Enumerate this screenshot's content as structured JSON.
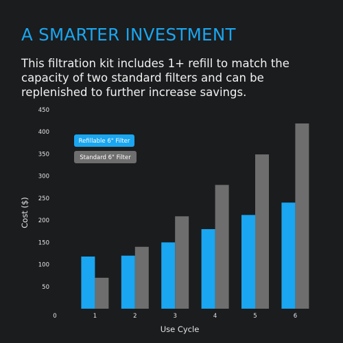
{
  "headline": "A SMARTER INVESTMENT",
  "intro": "This filtration kit includes 1+ refill to match the capacity of two standard filters and can be replenished to further increase savings.",
  "colors": {
    "background": "#1b1c1e",
    "headline": "#1aa6f0",
    "refillable": "#1aa6f0",
    "standard": "#6e6e6e"
  },
  "chart_data": {
    "type": "bar",
    "title": "",
    "xlabel": "Use Cycle",
    "ylabel": "Cost ($)",
    "x_axis_start_label": "0",
    "categories": [
      "1",
      "2",
      "3",
      "4",
      "5",
      "6"
    ],
    "ylim": [
      0,
      450
    ],
    "yticks": [
      50,
      100,
      150,
      200,
      250,
      300,
      350,
      400,
      450
    ],
    "grid": false,
    "legend_position": "top-left",
    "series": [
      {
        "name": "Refillable 6\" Filter",
        "values": [
          118,
          120,
          150,
          180,
          212,
          240
        ]
      },
      {
        "name": "Standard 6\" Filter",
        "values": [
          70,
          140,
          209,
          280,
          349,
          419
        ]
      }
    ]
  }
}
